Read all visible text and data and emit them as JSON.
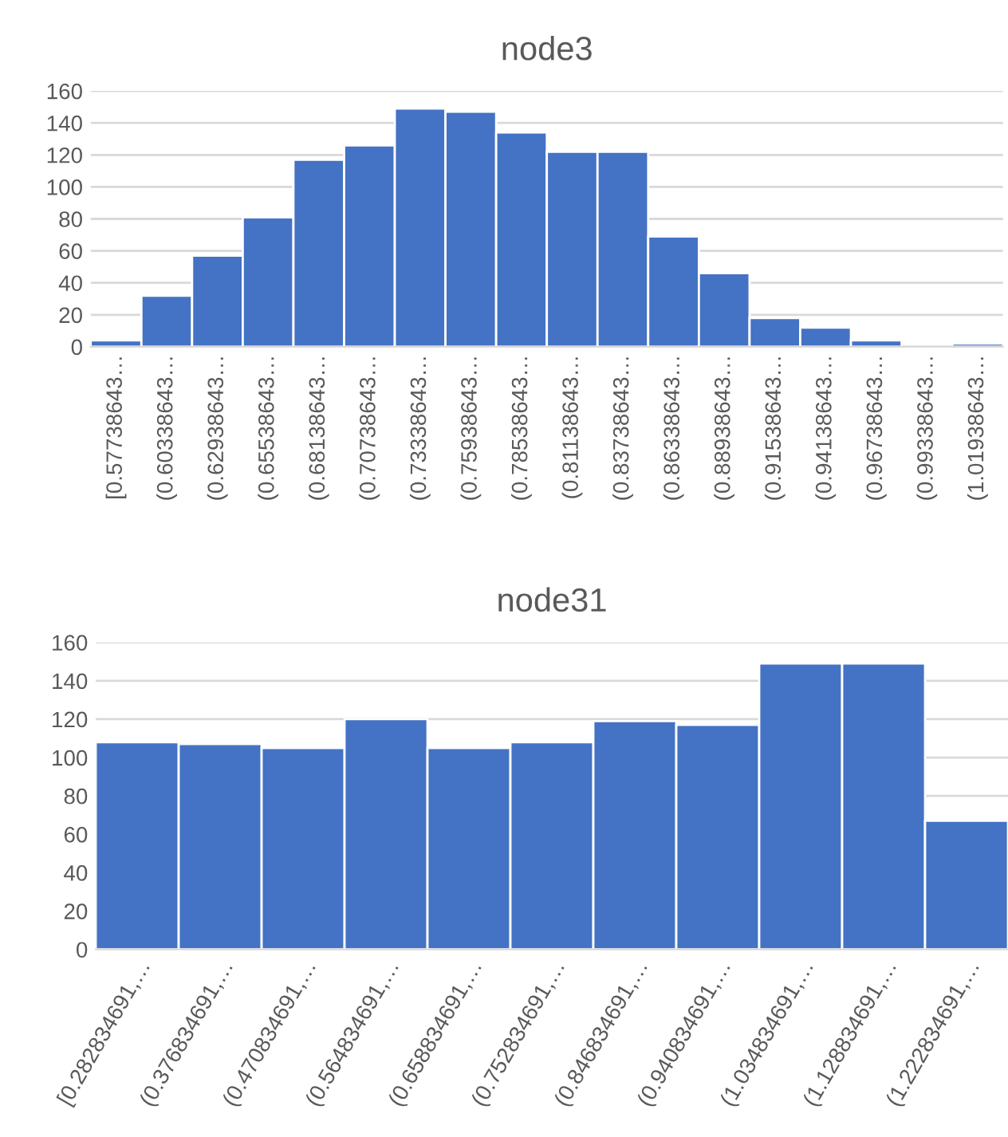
{
  "chart_data": [
    {
      "type": "bar",
      "title": "node3",
      "categories": [
        "[0.57738643…",
        "(0.60338643…",
        "(0.62938643…",
        "(0.65538643…",
        "(0.68138643…",
        "(0.70738643…",
        "(0.73338643…",
        "(0.75938643…",
        "(0.78538643…",
        "(0.81138643…",
        "(0.83738643…",
        "(0.86338643…",
        "(0.88938643…",
        "(0.91538643…",
        "(0.94138643…",
        "(0.96738643…",
        "(0.99338643…",
        "(1.01938643…"
      ],
      "series": [
        {
          "color": "#4472c4",
          "values": [
            4,
            32,
            57,
            81,
            117,
            126,
            149,
            147,
            134,
            122,
            122,
            69,
            46,
            18,
            12,
            4,
            0,
            2
          ]
        }
      ],
      "ylim": [
        0,
        160
      ],
      "yticks": [
        0,
        20,
        40,
        60,
        80,
        100,
        120,
        140,
        160
      ],
      "grid": "y",
      "legend": false
    },
    {
      "type": "bar",
      "title": "node31",
      "categories": [
        "[0.282834691,…",
        "(0.376834691,…",
        "(0.470834691,…",
        "(0.564834691,…",
        "(0.658834691,…",
        "(0.752834691,…",
        "(0.846834691,…",
        "(0.940834691,…",
        "(1.034834691,…",
        "(1.128834691,…",
        "(1.222834691,…"
      ],
      "series": [
        {
          "color": "#4472c4",
          "values": [
            108,
            107,
            105,
            120,
            105,
            108,
            119,
            117,
            149,
            149,
            67
          ]
        }
      ],
      "ylim": [
        0,
        160
      ],
      "yticks": [
        0,
        20,
        40,
        60,
        80,
        100,
        120,
        140,
        160
      ],
      "grid": "y",
      "legend": false
    }
  ]
}
